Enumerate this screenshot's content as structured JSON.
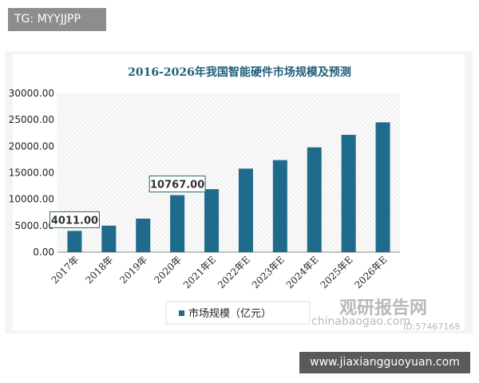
{
  "overlay_tag": "TG: MYYJJPP",
  "overlay_url": "www.jiaxiangguoyuan.com",
  "watermark": {
    "brand": "观研报告网",
    "site": "chinabaogao.com",
    "id": "ID:57467168"
  },
  "chart_data": {
    "type": "bar",
    "title": "2016-2026年我国智能硬件市场规模及预测",
    "categories": [
      "2017年",
      "2018年",
      "2019年",
      "2020年",
      "2021年E",
      "2022年E",
      "2023年E",
      "2024年E",
      "2025年E",
      "2026年E"
    ],
    "series": [
      {
        "name": "市场规模（亿元）",
        "values": [
          4011,
          5000,
          6330,
          10767,
          11900,
          15780,
          17390,
          19800,
          22160,
          24520
        ],
        "color": "#1f6b8c"
      }
    ],
    "data_labels": [
      {
        "index": 0,
        "text": "4011.00"
      },
      {
        "index": 3,
        "text": "10767.00"
      }
    ],
    "ylim": [
      0,
      30000
    ],
    "yticks": [
      "0.00",
      "5000.00",
      "10000.00",
      "15000.00",
      "20000.00",
      "25000.00",
      "30000.00"
    ],
    "legend": "bottom",
    "grid": false,
    "title_color": "#1f5f7a"
  }
}
